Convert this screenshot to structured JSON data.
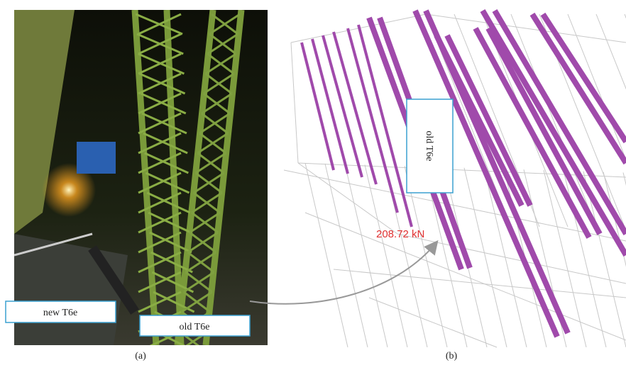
{
  "panels": [
    {
      "label": "(a)",
      "annotations": [
        "new T6e",
        "old T6e"
      ]
    },
    {
      "label": "(b)",
      "annotations": [
        "old T6e"
      ],
      "force_label": "208.72 kN"
    }
  ]
}
